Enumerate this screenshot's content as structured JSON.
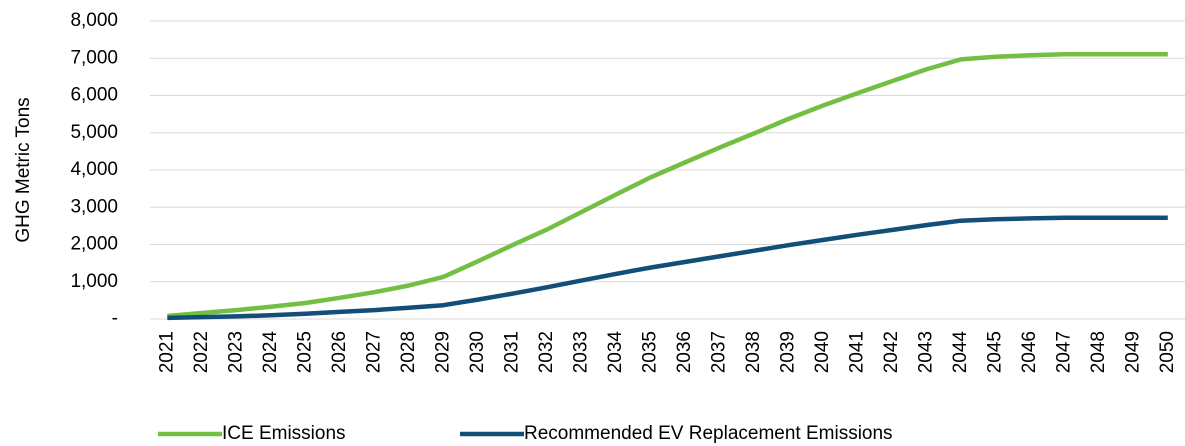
{
  "chart_data": {
    "type": "line",
    "y_label": "GHG Metric Tons",
    "categories": [
      "2021",
      "2022",
      "2023",
      "2024",
      "2025",
      "2026",
      "2027",
      "2028",
      "2029",
      "2030",
      "2031",
      "2032",
      "2033",
      "2034",
      "2035",
      "2036",
      "2037",
      "2038",
      "2039",
      "2040",
      "2041",
      "2042",
      "2043",
      "2044",
      "2045",
      "2046",
      "2047",
      "2048",
      "2049",
      "2050"
    ],
    "series": [
      {
        "name": "ICE Emissions",
        "color": "#72bf44",
        "values": [
          80,
          160,
          240,
          330,
          430,
          570,
          720,
          900,
          1130,
          1550,
          1980,
          2400,
          2870,
          3340,
          3800,
          4200,
          4600,
          4980,
          5370,
          5730,
          6060,
          6380,
          6700,
          6970,
          7040,
          7080,
          7110,
          7110,
          7110,
          7110
        ]
      },
      {
        "name": "Recommended EV Replacement Emissions",
        "color": "#124e78",
        "values": [
          30,
          50,
          70,
          100,
          140,
          190,
          240,
          300,
          370,
          520,
          680,
          850,
          1030,
          1210,
          1380,
          1530,
          1680,
          1830,
          1980,
          2120,
          2260,
          2390,
          2520,
          2640,
          2680,
          2700,
          2720,
          2720,
          2720,
          2720
        ]
      }
    ],
    "ylim": [
      0,
      8000
    ],
    "yticks": [
      {
        "value": 0,
        "label": "-"
      },
      {
        "value": 1000,
        "label": "1,000"
      },
      {
        "value": 2000,
        "label": "2,000"
      },
      {
        "value": 3000,
        "label": "3,000"
      },
      {
        "value": 4000,
        "label": "4,000"
      },
      {
        "value": 5000,
        "label": "5,000"
      },
      {
        "value": 6000,
        "label": "6,000"
      },
      {
        "value": 7000,
        "label": "7,000"
      },
      {
        "value": 8000,
        "label": "8,000"
      }
    ],
    "grid": true,
    "legend": "bottom"
  }
}
